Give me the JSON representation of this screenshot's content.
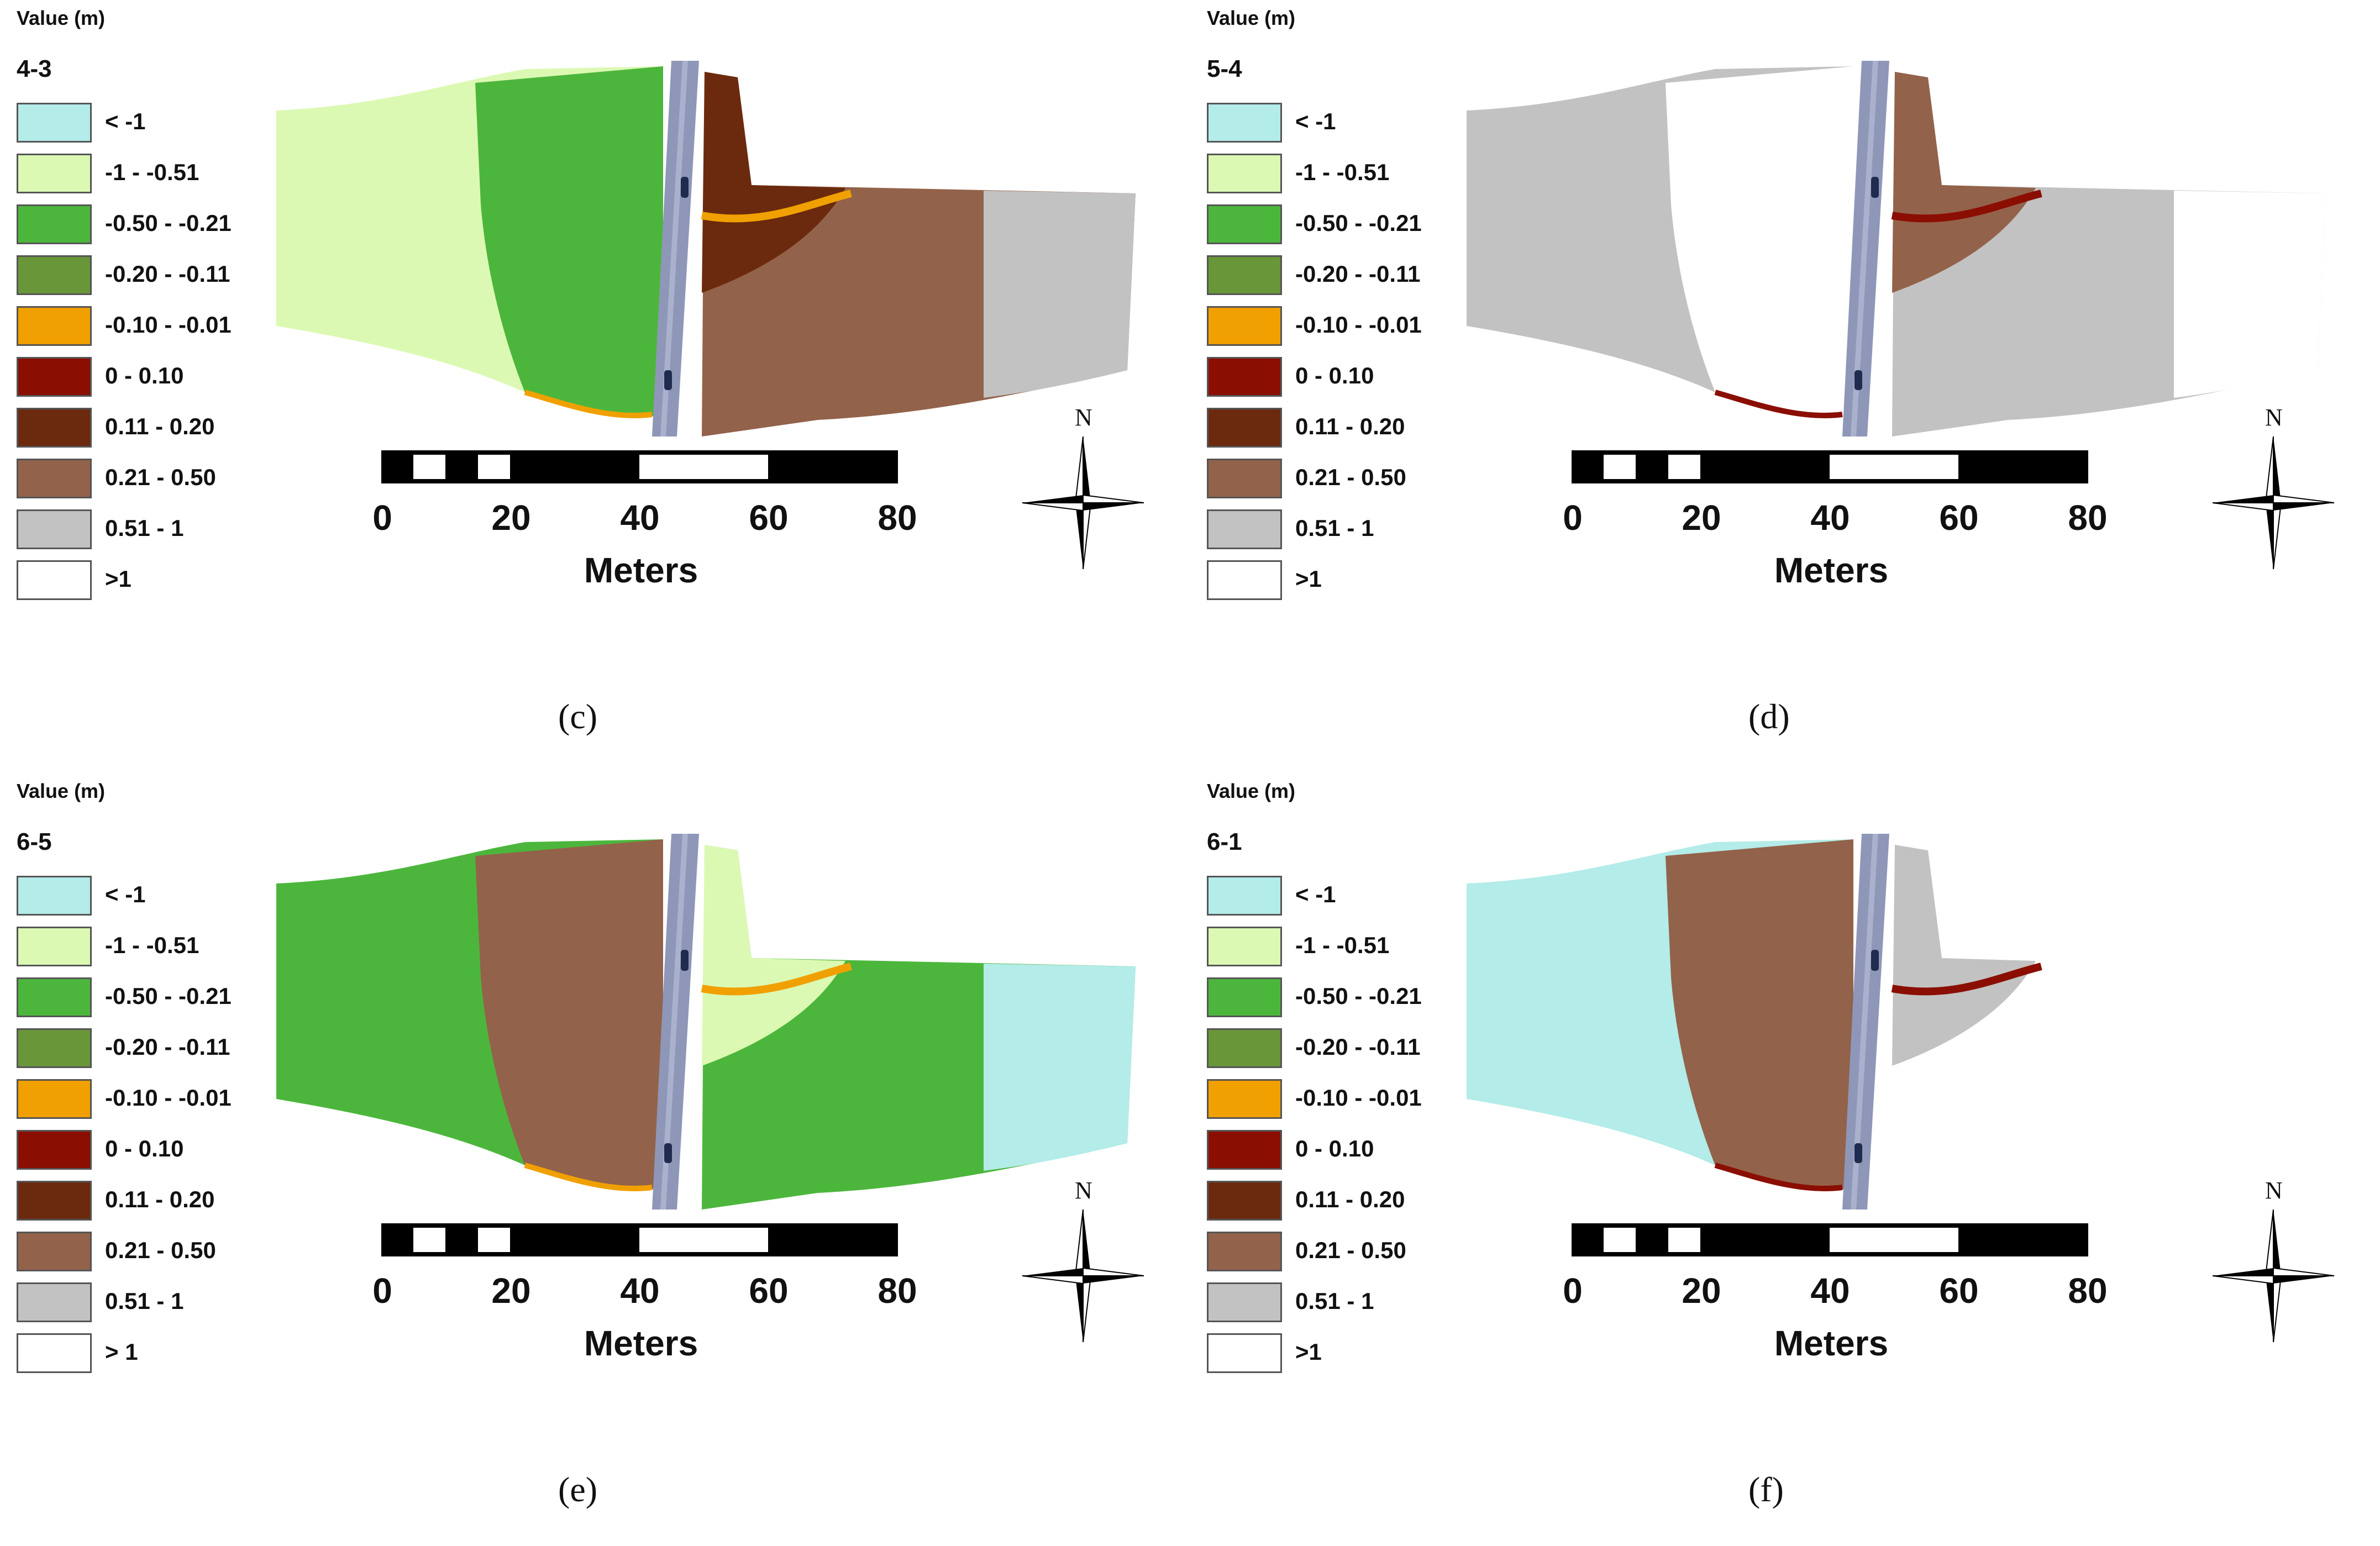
{
  "legend": {
    "title": "Value (m)",
    "classes": [
      {
        "label": "< -1",
        "color": "#b3ece8"
      },
      {
        "label": "-1 - -0.51",
        "color": "#dcf9b3"
      },
      {
        "label": "-0.50 - -0.21",
        "color": "#4cb63c"
      },
      {
        "label": "-0.20 - -0.11",
        "color": "#6a963a"
      },
      {
        "label": "-0.10 - -0.01",
        "color": "#f0a000"
      },
      {
        "label": "0 - 0.10",
        "color": "#8b0e02"
      },
      {
        "label": "0.11 - 0.20",
        "color": "#6b2a0e"
      },
      {
        "label": "0.21 - 0.50",
        "color": "#93624a"
      },
      {
        "label": "0.51 - 1",
        "color": "#c2c2c2"
      },
      {
        "label": ">1",
        "color": "#ffffff"
      }
    ]
  },
  "panels": [
    {
      "name": "4-3",
      "caption": "(c)",
      "gt1_label": ">1",
      "colors": {
        "left": "#dcf9b3",
        "mid": "#4cb63c",
        "right_top": "#6b2a0e",
        "right_main": "#93624a",
        "right_end": "#c2c2c2",
        "edge": "#f0a000"
      }
    },
    {
      "name": "5-4",
      "caption": "(d)",
      "gt1_label": ">1",
      "colors": {
        "left": "#c2c2c2",
        "mid": "#ffffff",
        "right_top": "#93624a",
        "right_main": "#c2c2c2",
        "right_end": "#ffffff",
        "edge": "#8b0e02"
      }
    },
    {
      "name": "6-5",
      "caption": "(e)",
      "gt1_label": "> 1",
      "colors": {
        "left": "#4cb63c",
        "mid": "#93624a",
        "right_top": "#dcf9b3",
        "right_main": "#4cb63c",
        "right_end": "#b3ece8",
        "edge": "#f0a000"
      }
    },
    {
      "name": "6-1",
      "caption": "(f)",
      "gt1_label": ">1",
      "colors": {
        "left": "#b3ece8",
        "mid": "#93624a",
        "right_top": "#c2c2c2",
        "right_main": "#ffffff",
        "right_end": "#ffffff",
        "edge": "#8b0e02"
      }
    }
  ],
  "scale": {
    "ticks": [
      "0",
      "20",
      "40",
      "60",
      "80"
    ],
    "unit": "Meters"
  },
  "north_label": "N"
}
